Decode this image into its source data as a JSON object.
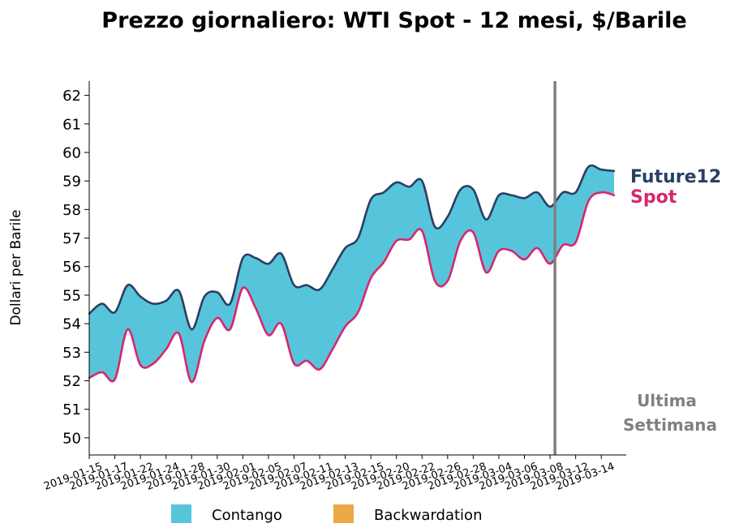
{
  "chart_data": {
    "type": "area",
    "title": "Prezzo giornaliero: WTI Spot - 12 mesi, $/Barile",
    "ylabel": "Dollari per Barile",
    "xlabel": "",
    "ylim": [
      49.4,
      62.5
    ],
    "yticks": [
      50,
      51,
      52,
      53,
      54,
      55,
      56,
      57,
      58,
      59,
      60,
      61,
      62
    ],
    "x_tick_labels": [
      "2019-01-15",
      "2019-01-17",
      "2019-01-22",
      "2019-01-24",
      "2019-01-28",
      "2019-01-30",
      "2019-02-01",
      "2019-02-05",
      "2019-02-07",
      "2019-02-11",
      "2019-02-13",
      "2019-02-15",
      "2019-02-20",
      "2019-02-22",
      "2019-02-26",
      "2019-02-28",
      "2019-03-04",
      "2019-03-06",
      "2019-03-08",
      "2019-03-12",
      "2019-03-14"
    ],
    "x": [
      "2019-01-15",
      "2019-01-16",
      "2019-01-17",
      "2019-01-18",
      "2019-01-22",
      "2019-01-23",
      "2019-01-24",
      "2019-01-25",
      "2019-01-28",
      "2019-01-29",
      "2019-01-30",
      "2019-01-31",
      "2019-02-01",
      "2019-02-04",
      "2019-02-05",
      "2019-02-06",
      "2019-02-07",
      "2019-02-08",
      "2019-02-11",
      "2019-02-12",
      "2019-02-13",
      "2019-02-14",
      "2019-02-15",
      "2019-02-19",
      "2019-02-20",
      "2019-02-21",
      "2019-02-22",
      "2019-02-25",
      "2019-02-26",
      "2019-02-27",
      "2019-02-28",
      "2019-03-01",
      "2019-03-04",
      "2019-03-05",
      "2019-03-06",
      "2019-03-07",
      "2019-03-08",
      "2019-03-11",
      "2019-03-12",
      "2019-03-13",
      "2019-03-14",
      "2019-03-15"
    ],
    "series": [
      {
        "name": "Future12",
        "color": "#2b3f63",
        "values": [
          54.35,
          54.7,
          54.4,
          55.35,
          54.95,
          54.7,
          54.8,
          55.15,
          53.8,
          54.95,
          55.1,
          54.7,
          56.3,
          56.3,
          56.1,
          56.45,
          55.35,
          55.35,
          55.2,
          55.9,
          56.65,
          57.0,
          58.35,
          58.6,
          58.95,
          58.8,
          59.0,
          57.4,
          57.75,
          58.7,
          58.7,
          57.65,
          58.5,
          58.5,
          58.4,
          58.6,
          58.1,
          58.6,
          58.6,
          59.5,
          59.4,
          59.35
        ]
      },
      {
        "name": "Spot",
        "color": "#d6276d",
        "values": [
          52.1,
          52.3,
          52.05,
          53.8,
          52.55,
          52.6,
          53.1,
          53.65,
          51.95,
          53.4,
          54.2,
          53.8,
          55.25,
          54.55,
          53.6,
          54.0,
          52.6,
          52.7,
          52.4,
          53.1,
          53.9,
          54.4,
          55.6,
          56.15,
          56.9,
          56.95,
          57.25,
          55.5,
          55.5,
          56.9,
          57.2,
          55.8,
          56.55,
          56.55,
          56.25,
          56.65,
          56.1,
          56.75,
          56.85,
          58.3,
          58.6,
          58.5
        ]
      }
    ],
    "legend": {
      "position": "bottom",
      "entries": [
        {
          "label": "Contango",
          "color": "#56c5db"
        },
        {
          "label": "Backwardation",
          "color": "#eaa945"
        }
      ]
    },
    "annotation": {
      "line1": "Ultima",
      "line2": "Settimana",
      "at_x": "2019-03-08",
      "color": "#808080"
    },
    "end_labels": {
      "upper": "Future12",
      "lower": "Spot"
    },
    "grid": false
  }
}
